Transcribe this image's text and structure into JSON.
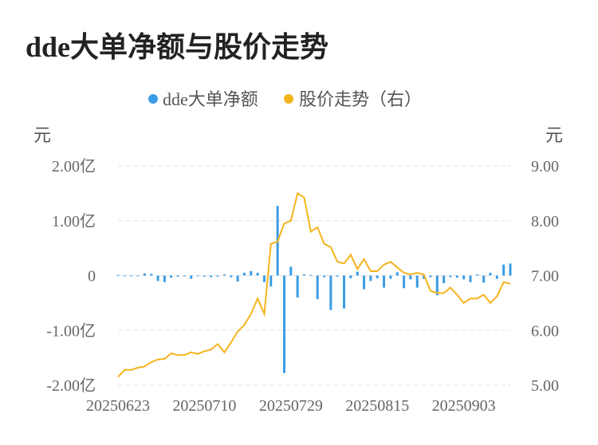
{
  "title": "dde大单净额与股价走势",
  "chart_data": {
    "type": "bar+line",
    "legend": [
      {
        "name": "dde大单净额",
        "color": "#3a9ce6"
      },
      {
        "name": "股价走势（右）",
        "color": "#f5b41c"
      }
    ],
    "left_unit": "元",
    "right_unit": "元",
    "left_axis": {
      "ylim": [
        -2.0,
        2.0
      ],
      "ticks": [
        2.0,
        1.0,
        0,
        -1.0,
        -2.0
      ],
      "tick_labels": [
        "2.00亿",
        "1.00亿",
        "0",
        "-1.00亿",
        "-2.00亿"
      ]
    },
    "right_axis": {
      "ylim": [
        5.0,
        9.0
      ],
      "ticks": [
        9.0,
        8.0,
        7.0,
        6.0,
        5.0
      ],
      "tick_labels": [
        "9.00",
        "8.00",
        "7.00",
        "6.00",
        "5.00"
      ]
    },
    "x_tick_labels": [
      "20250623",
      "20250710",
      "20250729",
      "20250815",
      "20250903"
    ],
    "x_tick_index": [
      0,
      13,
      26,
      39,
      52
    ],
    "grid": true,
    "legend_position": "top-center",
    "bars": [
      0.01,
      0.0,
      -0.01,
      -0.01,
      0.04,
      0.03,
      -0.1,
      -0.12,
      -0.04,
      -0.02,
      -0.01,
      -0.06,
      -0.01,
      -0.02,
      -0.03,
      -0.02,
      0.02,
      -0.03,
      -0.11,
      0.05,
      0.08,
      0.05,
      -0.12,
      -0.2,
      1.27,
      -1.78,
      0.16,
      -0.4,
      0.02,
      0.01,
      -0.43,
      -0.03,
      -0.63,
      -0.02,
      -0.6,
      -0.05,
      0.07,
      -0.25,
      -0.1,
      -0.05,
      -0.22,
      -0.06,
      0.06,
      -0.23,
      -0.07,
      -0.22,
      -0.06,
      -0.03,
      -0.36,
      -0.14,
      -0.03,
      -0.04,
      -0.07,
      -0.12,
      0.02,
      -0.13,
      0.05,
      -0.06,
      0.2,
      0.22
    ],
    "price": [
      5.15,
      5.28,
      5.28,
      5.32,
      5.34,
      5.42,
      5.47,
      5.48,
      5.58,
      5.55,
      5.55,
      5.6,
      5.57,
      5.62,
      5.65,
      5.75,
      5.6,
      5.78,
      5.98,
      6.1,
      6.3,
      6.58,
      6.3,
      7.58,
      7.62,
      7.95,
      8.0,
      8.5,
      8.42,
      7.8,
      7.88,
      7.58,
      7.52,
      7.25,
      7.22,
      7.38,
      7.12,
      7.3,
      7.08,
      7.08,
      7.2,
      7.25,
      7.15,
      7.05,
      7.02,
      7.05,
      7.02,
      6.72,
      6.68,
      6.68,
      6.78,
      6.65,
      6.5,
      6.58,
      6.58,
      6.65,
      6.5,
      6.62,
      6.88,
      6.85
    ]
  }
}
